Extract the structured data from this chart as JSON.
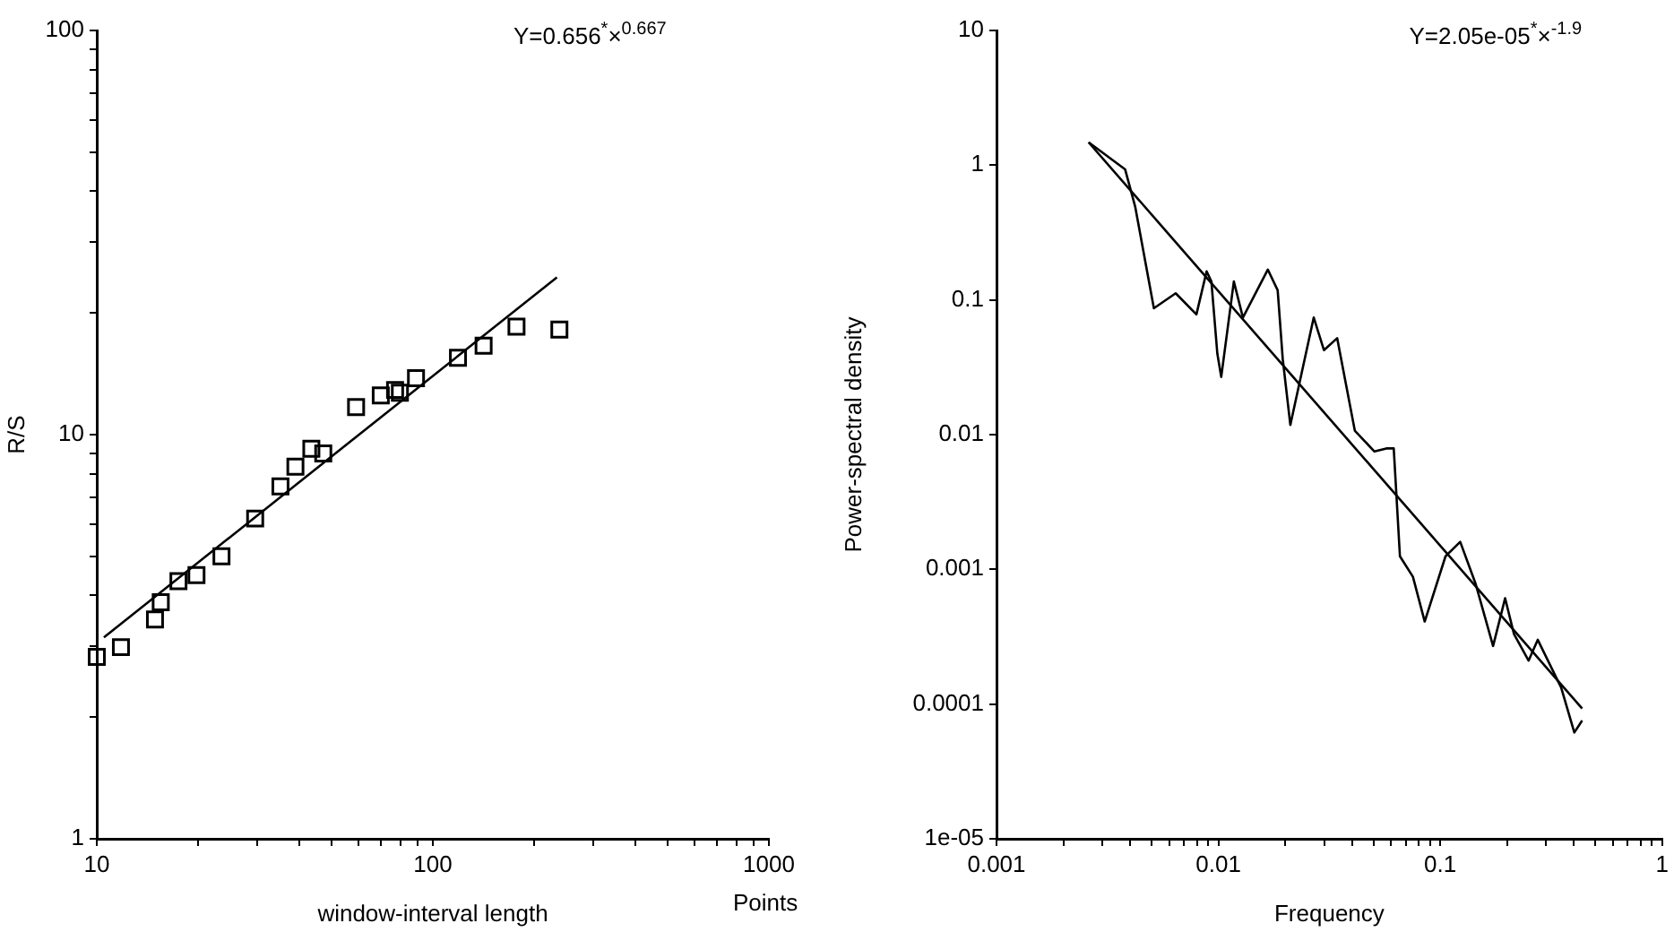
{
  "chart_data": [
    {
      "type": "scatter",
      "xlabel": "window-interval length",
      "ylabel": "R/S",
      "log": "xy",
      "grid": false,
      "legend": false,
      "marker": "square",
      "annotations": [
        "Y=0.656$^{*}$×$^{0.667}$",
        "Points"
      ],
      "xlim": [
        10,
        1000
      ],
      "ylim": [
        1,
        100
      ],
      "xticks": [
        10,
        {
          "value": 20,
          "label": null
        },
        {
          "value": 30,
          "label": null
        },
        {
          "value": 40,
          "label": null
        },
        {
          "value": 50,
          "label": null
        },
        {
          "value": 60,
          "label": null
        },
        {
          "value": 70,
          "label": null
        },
        {
          "value": 80,
          "label": null
        },
        {
          "value": 90,
          "label": null
        },
        100,
        {
          "value": 200,
          "label": null
        },
        {
          "value": 300,
          "label": null
        },
        {
          "value": 400,
          "label": null
        },
        {
          "value": 500,
          "label": null
        },
        {
          "value": 600,
          "label": null
        },
        {
          "value": 700,
          "label": null
        },
        {
          "value": 800,
          "label": null
        },
        {
          "value": 900,
          "label": null
        },
        1000
      ],
      "yticks": [
        1,
        {
          "value": 2,
          "label": null
        },
        {
          "value": 3,
          "label": null
        },
        {
          "value": 4,
          "label": null
        },
        {
          "value": 5,
          "label": null
        },
        {
          "value": 6,
          "label": null
        },
        {
          "value": 7,
          "label": null
        },
        {
          "value": 8,
          "label": null
        },
        {
          "value": 9,
          "label": null
        },
        10,
        {
          "value": 20,
          "label": null
        },
        {
          "value": 30,
          "label": null
        },
        {
          "value": 40,
          "label": null
        },
        {
          "value": 50,
          "label": null
        },
        {
          "value": 60,
          "label": null
        },
        {
          "value": 70,
          "label": null
        },
        {
          "value": 80,
          "label": null
        },
        {
          "value": 90,
          "label": null
        },
        100
      ],
      "series": [
        {
          "color": "#000000",
          "x": [
            10,
            11.8,
            14.9,
            15.5,
            17.5,
            19.8,
            23.5,
            29.6,
            35.2,
            39,
            43.5,
            47.2,
            59.1,
            70,
            77.2,
            79.8,
            89.1,
            118.8,
            141.6,
            177.4,
            238
          ],
          "values": [
            2.82,
            2.98,
            3.49,
            3.85,
            4.34,
            4.49,
            5.0,
            6.2,
            7.45,
            8.33,
            9.23,
            8.98,
            11.7,
            12.5,
            12.9,
            12.7,
            13.8,
            15.5,
            16.6,
            18.5,
            18.2
          ]
        },
        {
          "type": "line",
          "color": "#000000",
          "line_style": "solid",
          "marker": "none",
          "x": [
            10.5,
            234
          ],
          "values": [
            3.15,
            24.5
          ]
        }
      ]
    },
    {
      "type": "line",
      "xlabel": "Frequency",
      "ylabel": "Power-spectral density",
      "log": "xy",
      "grid": false,
      "legend": false,
      "marker": "none",
      "line_style": "solid",
      "annotations": [
        "Y=2.05e-05$^{*}$×$^{-1.9}$"
      ],
      "xlim": [
        0.001,
        1
      ],
      "ylim": [
        1e-05,
        10
      ],
      "xticks": [
        0.001,
        {
          "value": 0.002,
          "label": null
        },
        {
          "value": 0.003,
          "label": null
        },
        {
          "value": 0.004,
          "label": null
        },
        {
          "value": 0.005,
          "label": null
        },
        {
          "value": 0.006,
          "label": null
        },
        {
          "value": 0.007,
          "label": null
        },
        {
          "value": 0.008,
          "label": null
        },
        {
          "value": 0.009,
          "label": null
        },
        0.01,
        {
          "value": 0.02,
          "label": null
        },
        {
          "value": 0.03,
          "label": null
        },
        {
          "value": 0.04,
          "label": null
        },
        {
          "value": 0.05,
          "label": null
        },
        {
          "value": 0.06,
          "label": null
        },
        {
          "value": 0.07,
          "label": null
        },
        {
          "value": 0.08,
          "label": null
        },
        {
          "value": 0.09,
          "label": null
        },
        0.1,
        {
          "value": 0.2,
          "label": null
        },
        {
          "value": 0.3,
          "label": null
        },
        {
          "value": 0.4,
          "label": null
        },
        {
          "value": 0.5,
          "label": null
        },
        {
          "value": 0.6,
          "label": null
        },
        {
          "value": 0.7,
          "label": null
        },
        {
          "value": 0.8,
          "label": null
        },
        {
          "value": 0.9,
          "label": null
        },
        1
      ],
      "yticks": [
        {
          "value": 1e-05,
          "label": "1e-05"
        },
        0.0001,
        0.001,
        0.01,
        0.1,
        1,
        10
      ],
      "series": [
        {
          "color": "#000000",
          "x": [
            0.0026,
            0.0038,
            0.00422,
            0.00512,
            0.00642,
            0.00796,
            0.00885,
            0.0093,
            0.00989,
            0.0103,
            0.01174,
            0.0129,
            0.0167,
            0.0185,
            0.0195,
            0.0211,
            0.0269,
            0.0299,
            0.0343,
            0.0412,
            0.0505,
            0.0571,
            0.0617,
            0.0658,
            0.0753,
            0.0851,
            0.1056,
            0.123,
            0.144,
            0.173,
            0.196,
            0.215,
            0.25,
            0.275,
            0.351,
            0.402,
            0.436
          ],
          "values": [
            1.48,
            0.93,
            0.49,
            0.0867,
            0.112,
            0.078,
            0.163,
            0.137,
            0.04,
            0.0268,
            0.137,
            0.074,
            0.168,
            0.118,
            0.0364,
            0.0118,
            0.074,
            0.0424,
            0.052,
            0.0107,
            0.0075,
            0.0079,
            0.0079,
            0.00125,
            0.00088,
            0.00041,
            0.00125,
            0.0016,
            0.00079,
            0.00027,
            0.00061,
            0.00033,
            0.00021,
            0.0003,
            0.000132,
            6.15e-05,
            7.55e-05
          ]
        },
        {
          "color": "#000000",
          "x": [
            0.0026,
            0.436
          ],
          "values": [
            1.48,
            9.26e-05
          ]
        }
      ]
    }
  ]
}
